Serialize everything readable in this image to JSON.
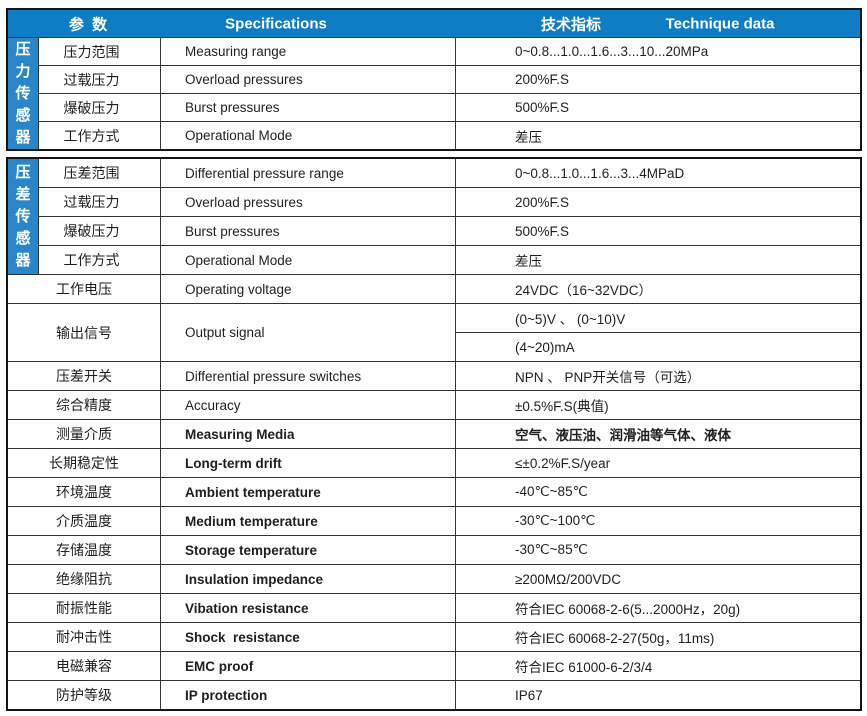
{
  "colors": {
    "header_bg": "#0f7dc5",
    "group_bg": "#2b86c9",
    "border": "#141414",
    "header_text": "#ffffff"
  },
  "header": {
    "param": "参  数",
    "spec": "Specifications",
    "tech_cn": "技术指标",
    "tech_en": "Technique data"
  },
  "sections": {
    "pressure": {
      "group": "压力传感器",
      "rows": [
        {
          "cn": "压力范围",
          "en": "Measuring range",
          "value": "0~0.8...1.0...1.6...3...10...20MPa"
        },
        {
          "cn": "过载压力",
          "en": "Overload pressures",
          "value": "200%F.S"
        },
        {
          "cn": "爆破压力",
          "en": "Burst pressures",
          "value": "500%F.S"
        },
        {
          "cn": "工作方式",
          "en": "Operational Mode",
          "value": "差压"
        }
      ]
    },
    "differential": {
      "group": "压差传感器",
      "rows": [
        {
          "cn": "压差范围",
          "en": "Differential pressure range",
          "value": "0~0.8...1.0...1.6...3...4MPaD"
        },
        {
          "cn": "过载压力",
          "en": "Overload pressures",
          "value": "200%F.S"
        },
        {
          "cn": "爆破压力",
          "en": "Burst pressures",
          "value": "500%F.S"
        },
        {
          "cn": "工作方式",
          "en": "Operational Mode",
          "value": "差压"
        }
      ]
    },
    "common": {
      "rows": [
        {
          "cn": "工作电压",
          "en": "Operating voltage",
          "value": "24VDC（16~32VDC）"
        },
        {
          "cn": "输出信号",
          "en": "Output signal",
          "value1": "(0~5)V 、 (0~10)V",
          "value2": "(4~20)mA"
        },
        {
          "cn": "压差开关",
          "en": "Differential pressure switches",
          "value": "NPN 、 PNP开关信号（可选）"
        },
        {
          "cn": "综合精度",
          "en": "Accuracy",
          "value": "±0.5%F.S(典值)"
        },
        {
          "cn": "测量介质",
          "en": "Measuring Media",
          "value": "空气、液压油、润滑油等气体、液体"
        },
        {
          "cn": "长期稳定性",
          "en": "Long-term drift",
          "value": "≤±0.2%F.S/year"
        },
        {
          "cn": "环境温度",
          "en": "Ambient temperature",
          "value": "-40℃~85℃"
        },
        {
          "cn": "介质温度",
          "en": "Medium temperature",
          "value": "-30℃~100℃"
        },
        {
          "cn": "存储温度",
          "en": "Storage temperature",
          "value": "-30℃~85℃"
        },
        {
          "cn": "绝缘阻抗",
          "en": "Insulation impedance",
          "value": "≥200MΩ/200VDC"
        },
        {
          "cn": "耐振性能",
          "en": "Vibation resistance",
          "value": "符合IEC 60068-2-6(5...2000Hz，20g)"
        },
        {
          "cn": "耐冲击性",
          "en": "Shock  resistance",
          "value": "符合IEC 60068-2-27(50g，11ms)"
        },
        {
          "cn": "电磁兼容",
          "en": "EMC proof",
          "value": "符合IEC 61000-6-2/3/4"
        },
        {
          "cn": "防护等级",
          "en": "IP protection",
          "value": "IP67"
        }
      ]
    }
  }
}
